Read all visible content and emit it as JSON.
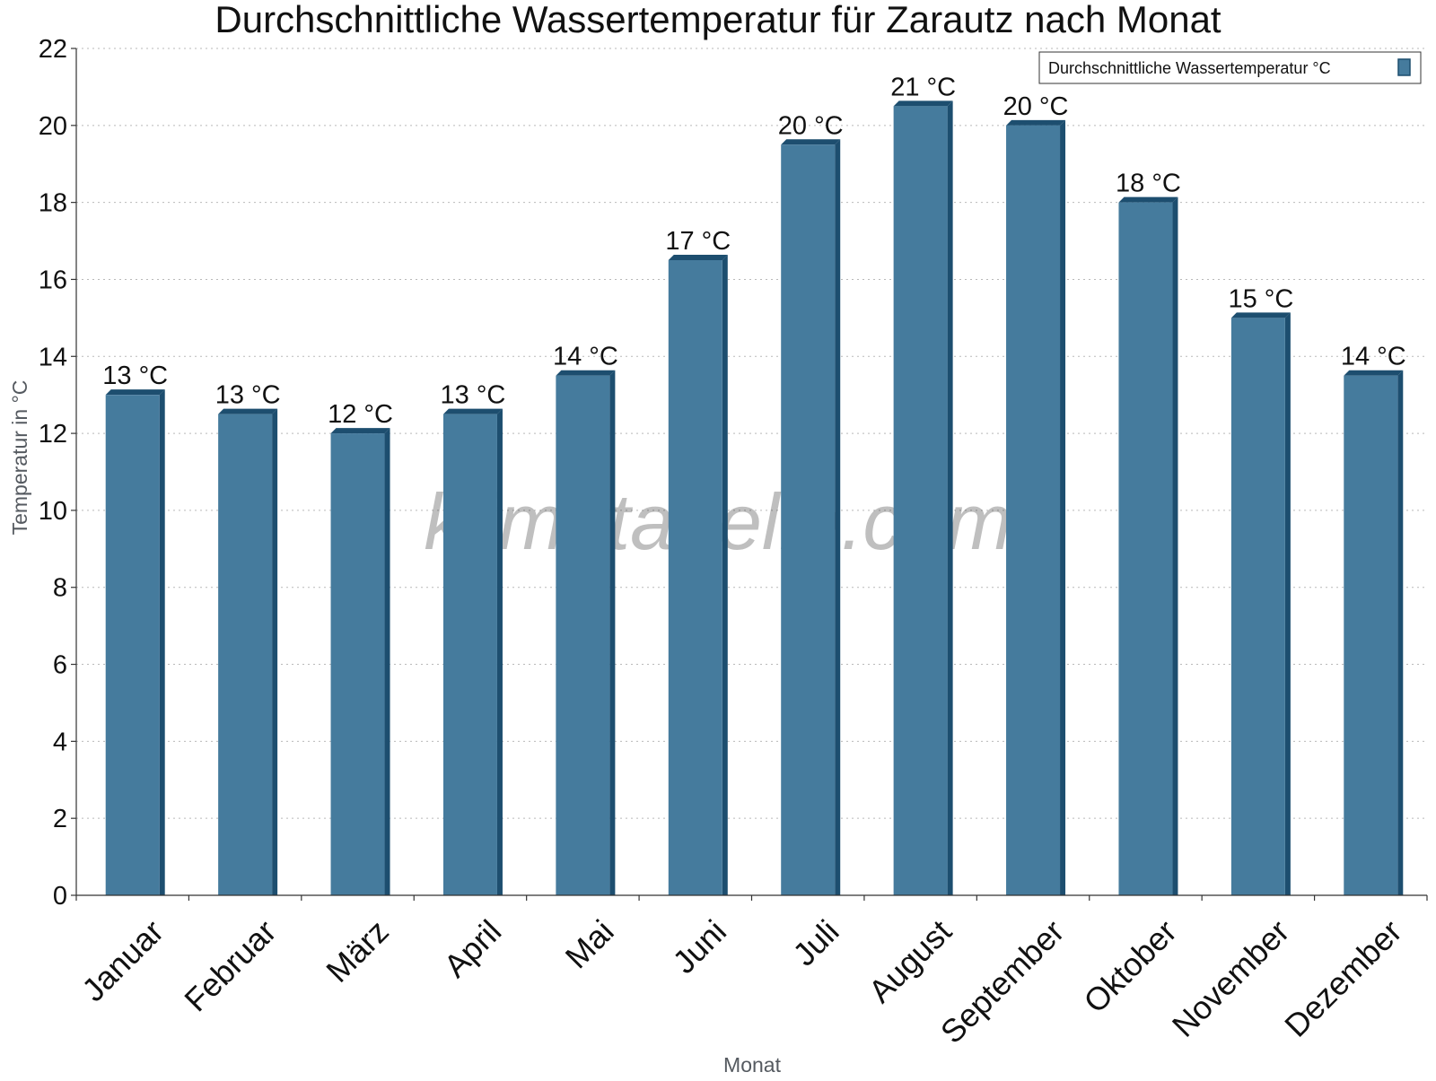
{
  "chart_data": {
    "type": "bar",
    "title": "Durchschnittliche Wassertemperatur für Zarautz nach Monat",
    "xlabel": "Monat",
    "ylabel": "Temperatur in °C",
    "categories": [
      "Januar",
      "Februar",
      "März",
      "April",
      "Mai",
      "Juni",
      "Juli",
      "August",
      "September",
      "Oktober",
      "November",
      "Dezember"
    ],
    "series": [
      {
        "name": "Durchschnittliche Wassertemperatur °C",
        "values": [
          13.0,
          12.5,
          12.0,
          12.5,
          13.5,
          16.5,
          19.5,
          20.5,
          20.0,
          18.0,
          15.0,
          13.5
        ],
        "labels": [
          "13 °C",
          "13 °C",
          "12 °C",
          "13 °C",
          "14 °C",
          "17 °C",
          "20 °C",
          "21 °C",
          "20 °C",
          "18 °C",
          "15 °C",
          "14 °C"
        ]
      }
    ],
    "ylim": [
      0,
      22
    ],
    "yticks": [
      0,
      2,
      4,
      6,
      8,
      10,
      12,
      14,
      16,
      18,
      20,
      22
    ],
    "grid": true,
    "legend_position": "top-right",
    "colors": {
      "bar": "#457b9d",
      "bar_side": "#1d4e6f",
      "bar_top": "#1d4e6f"
    }
  },
  "watermark": "klimatabelle.com"
}
